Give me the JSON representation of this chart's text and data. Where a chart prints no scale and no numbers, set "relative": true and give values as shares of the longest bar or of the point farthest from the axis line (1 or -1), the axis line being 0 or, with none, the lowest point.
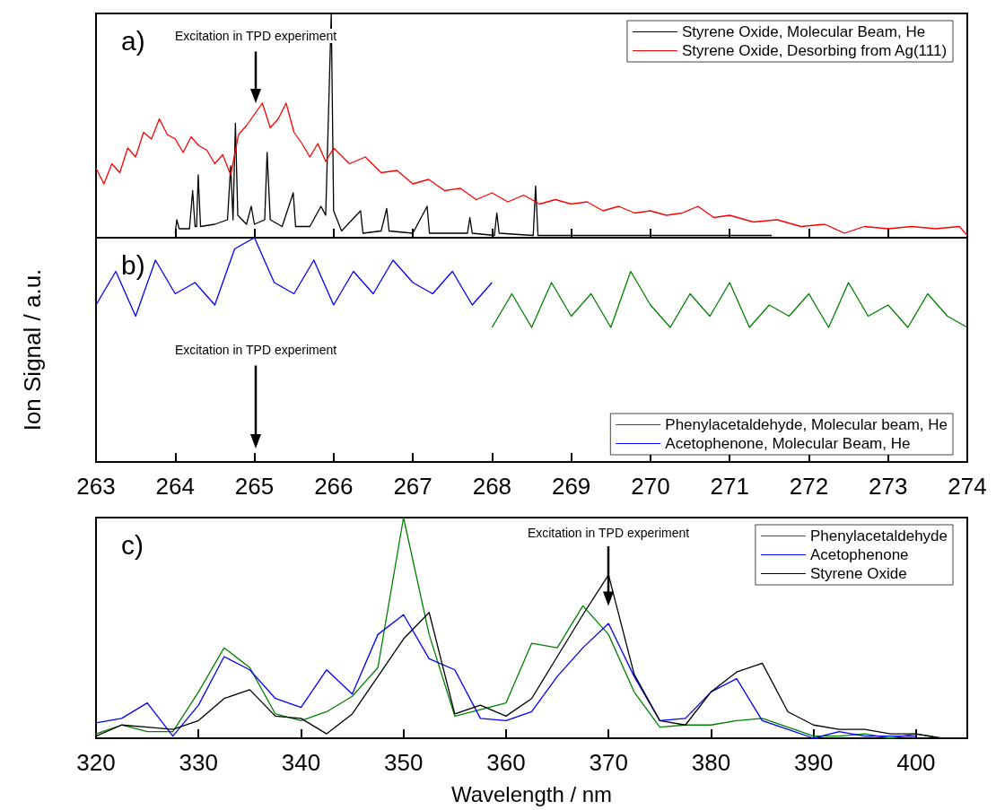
{
  "chart_data": [
    {
      "type": "line",
      "title": "a)",
      "relative": true,
      "xlim": [
        263,
        274
      ],
      "xticks": [
        263,
        264,
        265,
        266,
        267,
        268,
        269,
        270,
        271,
        272,
        273,
        274
      ],
      "tick_labels": false,
      "legend": "top right",
      "annotations": [
        "Excitation in TPD experiment"
      ],
      "series": [
        {
          "name": "Styrene Oxide, Molecular Beam, He",
          "color": "#000000",
          "x": [
            264.0,
            264.02,
            264.05,
            264.18,
            264.22,
            264.25,
            264.27,
            264.29,
            264.32,
            264.5,
            264.66,
            264.7,
            264.73,
            264.76,
            264.79,
            264.9,
            264.96,
            265.0,
            265.13,
            265.16,
            265.2,
            265.35,
            265.49,
            265.52,
            265.7,
            265.84,
            265.9,
            265.97,
            266.0,
            266.1,
            266.34,
            266.37,
            266.6,
            266.67,
            266.7,
            267.0,
            267.18,
            267.21,
            267.69,
            267.72,
            267.75,
            268.03,
            268.06,
            268.09,
            268.52,
            268.55,
            268.58,
            269.0,
            270.0,
            271.0,
            271.53
          ],
          "values": [
            0.02,
            0.08,
            0.04,
            0.04,
            0.21,
            0.05,
            0.05,
            0.28,
            0.05,
            0.06,
            0.08,
            0.32,
            0.08,
            0.51,
            0.1,
            0.06,
            0.14,
            0.06,
            0.08,
            0.38,
            0.08,
            0.05,
            0.2,
            0.05,
            0.05,
            0.14,
            0.1,
            1.0,
            0.12,
            0.03,
            0.12,
            0.02,
            0.03,
            0.13,
            0.03,
            0.02,
            0.14,
            0.02,
            0.02,
            0.09,
            0.02,
            0.01,
            0.11,
            0.02,
            0.01,
            0.23,
            0.01,
            0.01,
            0.01,
            0.01,
            0.01
          ]
        },
        {
          "name": "Styrene Oxide, Desorbing from Ag(111)",
          "color": "#ff0000",
          "x": [
            263.0,
            263.1,
            263.2,
            263.3,
            263.4,
            263.5,
            263.6,
            263.7,
            263.8,
            263.9,
            264.0,
            264.1,
            264.2,
            264.3,
            264.4,
            264.5,
            264.6,
            264.7,
            264.8,
            264.9,
            265.0,
            265.1,
            265.2,
            265.3,
            265.4,
            265.5,
            265.6,
            265.7,
            265.8,
            265.9,
            266.0,
            266.2,
            266.4,
            266.6,
            266.8,
            267.0,
            267.2,
            267.4,
            267.6,
            267.8,
            268.0,
            268.2,
            268.4,
            268.6,
            268.8,
            269.0,
            269.2,
            269.4,
            269.6,
            269.8,
            270.0,
            270.2,
            270.4,
            270.6,
            270.8,
            271.0,
            271.3,
            271.6,
            271.9,
            272.2,
            272.45,
            272.7,
            273.0,
            273.3,
            273.6,
            273.9,
            274.0
          ],
          "values": [
            0.31,
            0.24,
            0.33,
            0.29,
            0.4,
            0.36,
            0.47,
            0.44,
            0.53,
            0.46,
            0.44,
            0.38,
            0.45,
            0.41,
            0.39,
            0.33,
            0.37,
            0.28,
            0.46,
            0.5,
            0.55,
            0.6,
            0.49,
            0.53,
            0.6,
            0.47,
            0.42,
            0.36,
            0.42,
            0.34,
            0.4,
            0.33,
            0.36,
            0.29,
            0.3,
            0.24,
            0.26,
            0.21,
            0.22,
            0.17,
            0.2,
            0.16,
            0.19,
            0.15,
            0.17,
            0.15,
            0.16,
            0.12,
            0.14,
            0.11,
            0.12,
            0.1,
            0.11,
            0.14,
            0.09,
            0.1,
            0.07,
            0.08,
            0.05,
            0.06,
            0.02,
            0.05,
            0.04,
            0.05,
            0.04,
            0.05,
            0.01
          ]
        }
      ]
    },
    {
      "type": "line",
      "title": "b)",
      "ylabel": "Ion Signal / a.u.",
      "relative": true,
      "xlim": [
        263,
        274
      ],
      "xticks": [
        263,
        264,
        265,
        266,
        267,
        268,
        269,
        270,
        271,
        272,
        273,
        274
      ],
      "tick_labels": "x",
      "legend": "bottom right",
      "annotations": [
        "Excitation in TPD experiment"
      ],
      "series": [
        {
          "name": "Phenylacetaldehyde, Molecular beam, He",
          "color": "#008000",
          "x": [
            268.0,
            268.25,
            268.5,
            268.75,
            269.0,
            269.25,
            269.5,
            269.75,
            270.0,
            270.25,
            270.5,
            270.75,
            271.0,
            271.25,
            271.5,
            271.75,
            272.0,
            272.25,
            272.5,
            272.75,
            273.0,
            273.25,
            273.5,
            273.75,
            274.0
          ],
          "values": [
            0.6,
            0.75,
            0.6,
            0.8,
            0.65,
            0.75,
            0.6,
            0.85,
            0.7,
            0.6,
            0.75,
            0.65,
            0.8,
            0.6,
            0.7,
            0.65,
            0.75,
            0.6,
            0.8,
            0.65,
            0.7,
            0.6,
            0.75,
            0.65,
            0.6
          ]
        },
        {
          "name": "Acetophenone, Molecular Beam, He",
          "color": "#0000ff",
          "x": [
            263.0,
            263.25,
            263.5,
            263.75,
            264.0,
            264.25,
            264.5,
            264.75,
            265.0,
            265.25,
            265.5,
            265.75,
            266.0,
            266.25,
            266.5,
            266.75,
            267.0,
            267.25,
            267.5,
            267.75,
            268.0
          ],
          "values": [
            0.7,
            0.85,
            0.65,
            0.9,
            0.75,
            0.8,
            0.7,
            0.95,
            1.0,
            0.8,
            0.75,
            0.9,
            0.7,
            0.85,
            0.75,
            0.9,
            0.8,
            0.75,
            0.85,
            0.7,
            0.8
          ]
        }
      ]
    },
    {
      "type": "line",
      "title": "c)",
      "xlabel": "Wavelength / nm",
      "relative": true,
      "xlim": [
        320,
        405
      ],
      "xticks": [
        320,
        330,
        340,
        350,
        360,
        370,
        380,
        390,
        400
      ],
      "tick_labels": "x",
      "legend": "top right",
      "annotations": [
        "Excitation in TPD experiment"
      ],
      "x": [
        320,
        322.5,
        325,
        327.5,
        330,
        332.5,
        335,
        337.5,
        340,
        342.5,
        345,
        347.5,
        350,
        352.5,
        355,
        357.5,
        360,
        362.5,
        365,
        367.5,
        370,
        372.5,
        375,
        377.5,
        380,
        382.5,
        385,
        387.5,
        390,
        392.5,
        395,
        397.5,
        400,
        402.5,
        405
      ],
      "series": [
        {
          "name": "Phenylacetaldehyde",
          "color": "#008000",
          "values": [
            0.02,
            0.06,
            0.03,
            0.03,
            0.21,
            0.41,
            0.32,
            0.11,
            0.08,
            0.12,
            0.19,
            0.32,
            1.0,
            0.47,
            0.1,
            0.13,
            0.16,
            0.43,
            0.41,
            0.6,
            0.47,
            0.21,
            0.05,
            0.06,
            0.06,
            0.08,
            0.09,
            0.05,
            0.01,
            0.01,
            0.02,
            0,
            0.02,
            0,
            0
          ]
        },
        {
          "name": "Acetophenone",
          "color": "#0000ff",
          "values": [
            0.07,
            0.09,
            0.16,
            0.01,
            0.15,
            0.37,
            0.31,
            0.18,
            0.14,
            0.31,
            0.2,
            0.47,
            0.56,
            0.36,
            0.31,
            0.09,
            0.08,
            0.12,
            0.28,
            0.41,
            0.52,
            0.28,
            0.08,
            0.09,
            0.21,
            0.27,
            0.08,
            0.04,
            0,
            0.03,
            0.01,
            0.01,
            0.01,
            null,
            null
          ]
        },
        {
          "name": "Styrene Oxide",
          "color": "#000000",
          "values": [
            0.01,
            0.06,
            0.05,
            0.04,
            0.08,
            0.18,
            0.22,
            0.1,
            0.09,
            0.02,
            0.11,
            0.28,
            0.45,
            0.57,
            0.11,
            0.15,
            0.1,
            0.18,
            0.37,
            0.56,
            0.74,
            0.29,
            0.08,
            0.06,
            0.21,
            0.3,
            0.34,
            0.12,
            0.06,
            0.04,
            0.04,
            0.02,
            0.02,
            0,
            0
          ]
        }
      ]
    }
  ]
}
